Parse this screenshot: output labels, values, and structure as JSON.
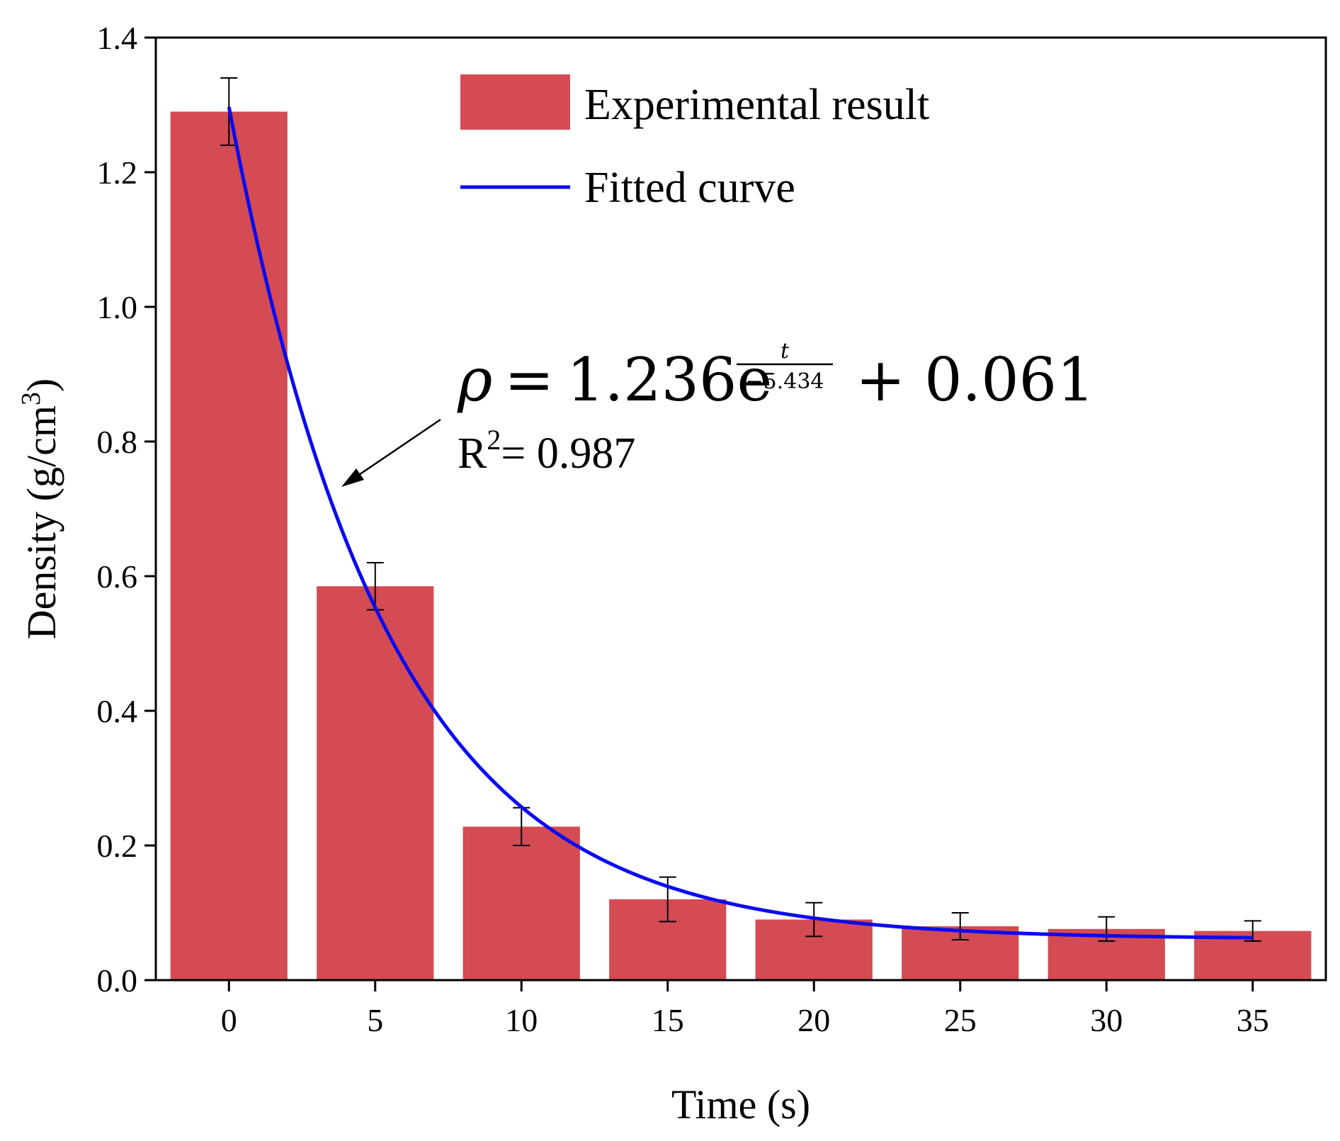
{
  "chart_data": {
    "type": "bar",
    "xlabel": "Time (s)",
    "ylabel": "Density (g/cm",
    "ylabel_sup": "3",
    "ylabel_close": ")",
    "ylim": [
      0.0,
      1.4
    ],
    "xlim": [
      -2.5,
      37.5
    ],
    "y_ticks": [
      "0.0",
      "0.2",
      "0.4",
      "0.6",
      "0.8",
      "1.0",
      "1.2",
      "1.4"
    ],
    "categories": [
      "0",
      "5",
      "10",
      "15",
      "20",
      "25",
      "30",
      "35"
    ],
    "x": [
      0,
      5,
      10,
      15,
      20,
      25,
      30,
      35
    ],
    "bar_width": 4,
    "values": [
      1.29,
      0.585,
      0.228,
      0.12,
      0.09,
      0.08,
      0.076,
      0.073
    ],
    "errors": [
      0.05,
      0.035,
      0.028,
      0.033,
      0.025,
      0.02,
      0.018,
      0.015
    ],
    "bar_color": "#D44B53",
    "curve_color": "#0A0AF0",
    "legend": [
      {
        "label": "Experimental result",
        "kind": "bar"
      },
      {
        "label": "Fitted curve",
        "kind": "line"
      }
    ],
    "fit": {
      "a": 1.236,
      "tau": 5.434,
      "c": 0.061,
      "x_from": 0,
      "x_to": 35
    },
    "annotation": {
      "rho": "ρ",
      "equals": "=",
      "coefficient": "1.236e",
      "frac_num": "t",
      "frac_den": "−5.434",
      "tail": "+ 0.061",
      "r2_prefix": "R",
      "r2_sup": "2",
      "r2_value": "= 0.987"
    },
    "grid": false,
    "legend_position": "top-right"
  }
}
